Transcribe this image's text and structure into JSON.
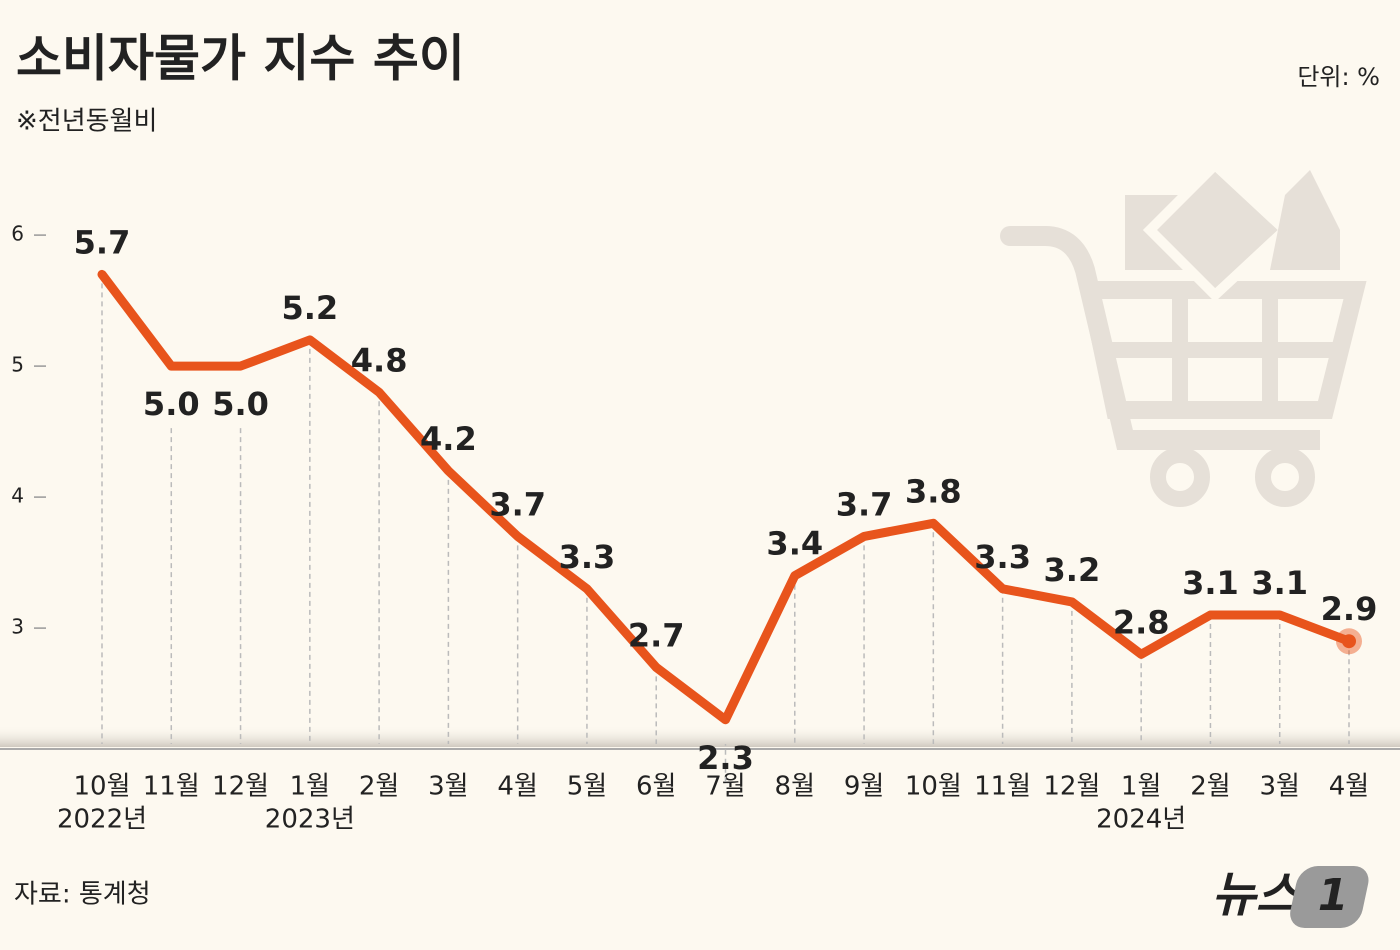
{
  "chart_data": {
    "type": "line",
    "title": "소비자물가 지수 추이",
    "subtitle": "※전년동월비",
    "unit": "단위: %",
    "source": "자료: 통계청",
    "logo": {
      "text": "뉴스",
      "badge": "1"
    },
    "categories": [
      "10월",
      "11월",
      "12월",
      "1월",
      "2월",
      "3월",
      "4월",
      "5월",
      "6월",
      "7월",
      "8월",
      "9월",
      "10월",
      "11월",
      "12월",
      "1월",
      "2월",
      "3월",
      "4월"
    ],
    "x_sublabels": [
      "2022년",
      null,
      null,
      "2023년",
      null,
      null,
      null,
      null,
      null,
      null,
      null,
      null,
      null,
      null,
      null,
      "2024년",
      null,
      null,
      null
    ],
    "series": [
      {
        "name": "소비자물가 지수",
        "color": "#e8541c",
        "values": [
          5.7,
          5.0,
          5.0,
          5.2,
          4.8,
          4.2,
          3.7,
          3.3,
          2.7,
          2.3,
          3.4,
          3.7,
          3.8,
          3.3,
          3.2,
          2.8,
          3.1,
          3.1,
          2.9
        ],
        "value_labels": [
          "5.7",
          "5.0",
          "5.0",
          "5.2",
          "4.8",
          "4.2",
          "3.7",
          "3.3",
          "2.7",
          "2.3",
          "3.4",
          "3.7",
          "3.8",
          "3.3",
          "3.2",
          "2.8",
          "3.1",
          "3.1",
          "2.9"
        ]
      }
    ],
    "ylim": [
      2.1,
      6.7
    ],
    "yticks": [
      3,
      4,
      5,
      6
    ]
  }
}
